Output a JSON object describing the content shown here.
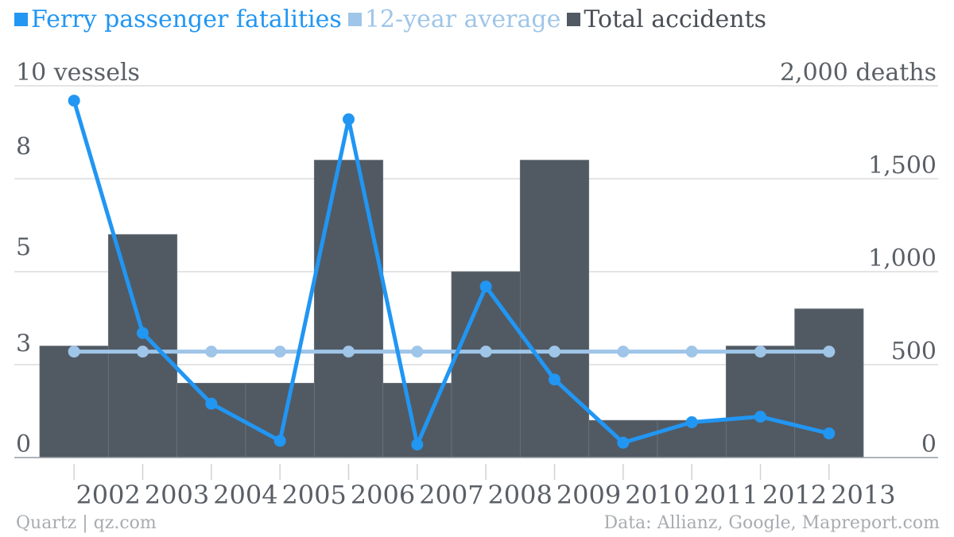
{
  "legend": [
    {
      "label": "Ferry passenger fatalities",
      "color": "#2196f3"
    },
    {
      "label": "12-year average",
      "color": "#9fc5e8"
    },
    {
      "label": "Total accidents",
      "color": "#515a63"
    }
  ],
  "footer": {
    "source_left": "Quartz | qz.com",
    "source_right": "Data: Allianz, Google, Mapreport.com"
  },
  "chart_data": {
    "type": "bar",
    "categories": [
      "2002",
      "2003",
      "2004",
      "2005",
      "2006",
      "2007",
      "2008",
      "2009",
      "2010",
      "2011",
      "2012",
      "2013"
    ],
    "series": [
      {
        "name": "Total accidents",
        "type": "bar",
        "axis": "left",
        "color": "#515a63",
        "values": [
          3,
          6,
          2,
          2,
          8,
          2,
          5,
          8,
          1,
          1,
          3,
          4
        ]
      },
      {
        "name": "Ferry passenger fatalities",
        "type": "line",
        "axis": "right",
        "color": "#2196f3",
        "values": [
          1920,
          670,
          290,
          90,
          1820,
          70,
          920,
          420,
          80,
          190,
          220,
          130
        ]
      },
      {
        "name": "12-year average",
        "type": "line",
        "axis": "right",
        "color": "#9fc5e8",
        "values": [
          570,
          570,
          570,
          570,
          570,
          570,
          570,
          570,
          570,
          570,
          570,
          570
        ]
      }
    ],
    "left_axis": {
      "ylim": [
        0,
        10
      ],
      "ticks": [
        "0",
        "3",
        "5",
        "8",
        "10 vessels"
      ]
    },
    "right_axis": {
      "ylim": [
        0,
        2000
      ],
      "ticks": [
        "0",
        "500",
        "1,000",
        "1,500",
        "2,000 deaths"
      ]
    },
    "grid": true,
    "legend_position": "top-left"
  }
}
